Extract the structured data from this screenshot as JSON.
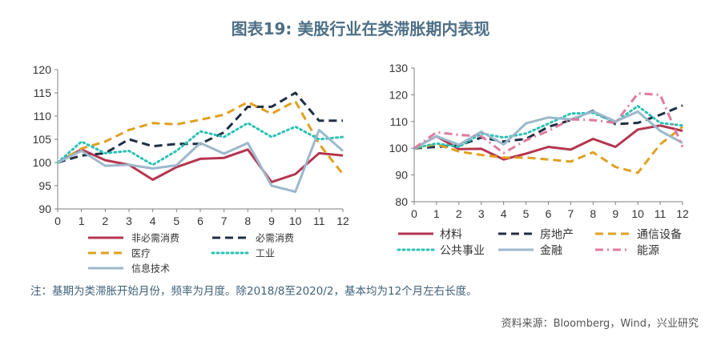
{
  "title": "图表19: 美股行业在类滞胀期内表现",
  "note": "注：基期为类滞胀开始月份，频率为月度。除2018/8至2020/2，基本均为12个月左右长度。",
  "source": "资料来源：Bloomberg，Wind，兴业研究",
  "chart_data": [
    {
      "type": "line",
      "title": "",
      "xlabel": "",
      "ylabel": "",
      "x": [
        0,
        1,
        2,
        3,
        4,
        5,
        6,
        7,
        8,
        9,
        10,
        11,
        12
      ],
      "xlim": [
        0,
        12
      ],
      "ylim": [
        90,
        120
      ],
      "yticks": [
        90,
        95,
        100,
        105,
        110,
        115,
        120
      ],
      "grid": false,
      "legend_position": "bottom",
      "series": [
        {
          "name": "非必需消费",
          "color": "#b5364f",
          "dash": "solid",
          "values": [
            100,
            102.8,
            100.5,
            99.5,
            96.3,
            99,
            100.8,
            101,
            102.8,
            95.8,
            97.5,
            102,
            101.5
          ]
        },
        {
          "name": "必需消费",
          "color": "#1f2f45",
          "dash": "dashed",
          "values": [
            100,
            101.5,
            102,
            105,
            103.5,
            104,
            104,
            106.5,
            112,
            112,
            115,
            109,
            109
          ]
        },
        {
          "name": "医疗",
          "color": "#e0a020",
          "dash": "dashed",
          "values": [
            100,
            103,
            104.5,
            107,
            108.5,
            108.2,
            109.2,
            110.3,
            113,
            110.5,
            113.2,
            104,
            97.5
          ]
        },
        {
          "name": "工业",
          "color": "#2cc2b5",
          "dash": "dotted",
          "values": [
            100,
            104.5,
            102,
            102.5,
            99.5,
            102.5,
            106.7,
            105.5,
            108.5,
            105.5,
            107.7,
            105,
            105.5
          ]
        },
        {
          "name": "信息技术",
          "color": "#9cb8cc",
          "dash": "solid",
          "values": [
            100,
            102.5,
            99.3,
            99.5,
            98.7,
            99.4,
            104.2,
            101.9,
            104.2,
            95,
            93.7,
            107,
            102.5
          ]
        }
      ]
    },
    {
      "type": "line",
      "title": "",
      "xlabel": "",
      "ylabel": "",
      "x": [
        0,
        1,
        2,
        3,
        4,
        5,
        6,
        7,
        8,
        9,
        10,
        11,
        12
      ],
      "xlim": [
        0,
        12
      ],
      "ylim": [
        80,
        130
      ],
      "yticks": [
        80,
        90,
        100,
        110,
        120,
        130
      ],
      "grid": false,
      "legend_position": "bottom",
      "series": [
        {
          "name": "材料",
          "color": "#b5364f",
          "dash": "solid",
          "values": [
            100,
            104.5,
            99.7,
            99.8,
            95.8,
            98,
            100.5,
            99.5,
            103.5,
            100.5,
            107,
            108.5,
            106.5
          ]
        },
        {
          "name": "房地产",
          "color": "#1f2f45",
          "dash": "dashed",
          "values": [
            100,
            100.5,
            101,
            104,
            102.5,
            103.5,
            108,
            110.5,
            114,
            109,
            109.5,
            112.5,
            116
          ]
        },
        {
          "name": "通信设备",
          "color": "#e0a020",
          "dash": "dashed",
          "values": [
            100,
            101.5,
            98.8,
            97.5,
            96.5,
            96.5,
            95.8,
            95,
            98.5,
            93,
            90.8,
            101.5,
            108
          ]
        },
        {
          "name": "公共事业",
          "color": "#2cc2b5",
          "dash": "dotted",
          "values": [
            100,
            101.8,
            100.5,
            105.5,
            104,
            105.5,
            109.2,
            113,
            113.2,
            109.8,
            115.8,
            109.5,
            108.5
          ]
        },
        {
          "name": "金融",
          "color": "#9cb8cc",
          "dash": "solid",
          "values": [
            100,
            104.5,
            101.3,
            106.2,
            101.4,
            109.3,
            111.5,
            110.8,
            113.8,
            110,
            113.7,
            106.5,
            102
          ]
        },
        {
          "name": "能源",
          "color": "#e07a9e",
          "dash": "dashdot",
          "values": [
            100,
            106,
            105,
            104.5,
            98.2,
            103,
            106.5,
            110.8,
            110.5,
            109.5,
            120.5,
            120,
            100.5
          ]
        }
      ]
    }
  ]
}
